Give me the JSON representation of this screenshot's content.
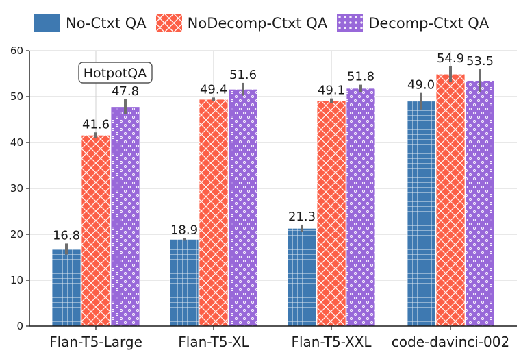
{
  "chart_data": {
    "type": "bar",
    "title": "",
    "annotation": "HotpotQA",
    "xlabel": "",
    "ylabel": "",
    "ylim": [
      0,
      60
    ],
    "yticks": [
      0,
      10,
      20,
      30,
      40,
      50,
      60
    ],
    "grid": true,
    "legend_position": "top",
    "categories": [
      "Flan-T5-Large",
      "Flan-T5-XL",
      "Flan-T5-XXL",
      "code-davinci-002"
    ],
    "series": [
      {
        "name": "No-Ctxt QA",
        "values": [
          16.8,
          18.9,
          21.3,
          49.0
        ],
        "labels": [
          "16.8",
          "18.9",
          "21.3",
          "49.0"
        ],
        "errors": [
          1.2,
          0.3,
          0.8,
          1.8
        ],
        "color": "#3e79b1",
        "hatch": "grid"
      },
      {
        "name": "NoDecomp-Ctxt QA",
        "values": [
          41.6,
          49.4,
          49.1,
          54.9
        ],
        "labels": [
          "41.6",
          "49.4",
          "49.1",
          "54.9"
        ],
        "errors": [
          0.6,
          0.4,
          0.5,
          1.7
        ],
        "color": "#fc5f47",
        "hatch": "cross"
      },
      {
        "name": "Decomp-Ctxt QA",
        "values": [
          47.8,
          51.6,
          51.8,
          53.5
        ],
        "labels": [
          "47.8",
          "51.6",
          "51.8",
          "53.5"
        ],
        "errors": [
          1.6,
          1.4,
          0.8,
          2.5
        ],
        "color": "#9868d9",
        "hatch": "dots"
      }
    ]
  }
}
